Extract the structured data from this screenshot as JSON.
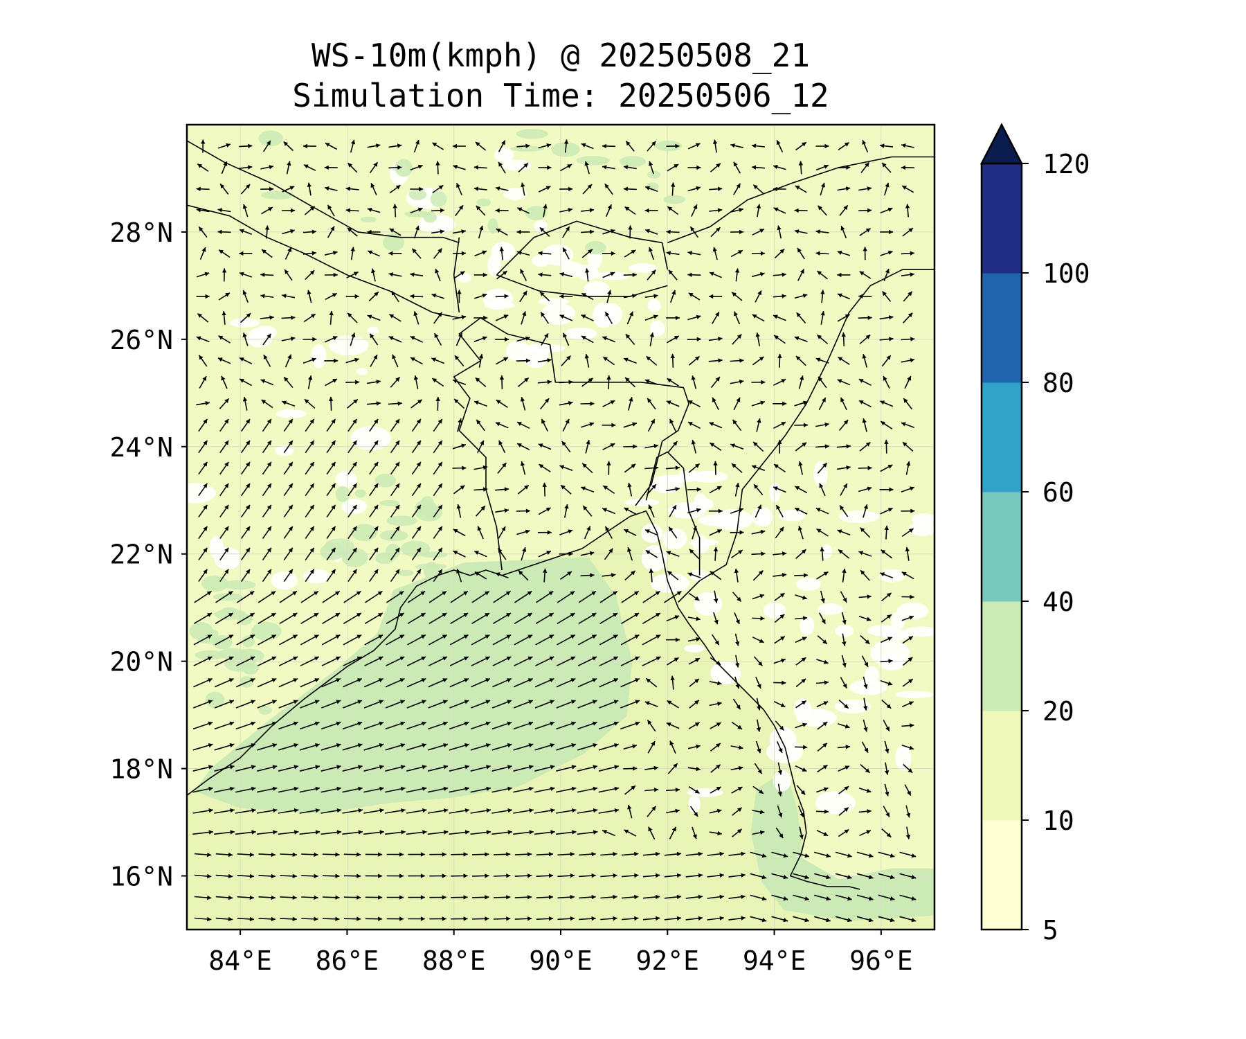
{
  "title": {
    "line1": "WS-10m(kmph) @ 20250508_21",
    "line2": "Simulation Time: 20250506_12"
  },
  "map": {
    "lon_range": [
      83.0,
      97.0
    ],
    "lat_range": [
      15.0,
      30.0
    ],
    "x_ticks": [
      {
        "value": 84,
        "label": "84°E"
      },
      {
        "value": 86,
        "label": "86°E"
      },
      {
        "value": 88,
        "label": "88°E"
      },
      {
        "value": 90,
        "label": "90°E"
      },
      {
        "value": 92,
        "label": "92°E"
      },
      {
        "value": 94,
        "label": "94°E"
      },
      {
        "value": 96,
        "label": "96°E"
      }
    ],
    "y_ticks": [
      {
        "value": 16,
        "label": "16°N"
      },
      {
        "value": 18,
        "label": "18°N"
      },
      {
        "value": 20,
        "label": "20°N"
      },
      {
        "value": 22,
        "label": "22°N"
      },
      {
        "value": 24,
        "label": "24°N"
      },
      {
        "value": 26,
        "label": "26°N"
      },
      {
        "value": 28,
        "label": "28°N"
      }
    ],
    "gridlines": true,
    "field": "wind speed at 10 m with wind direction arrows"
  },
  "colorbar": {
    "extend": "max",
    "levels": [
      5,
      10,
      20,
      40,
      60,
      80,
      100,
      120
    ],
    "labels": [
      "5",
      "10",
      "20",
      "40",
      "60",
      "80",
      "100",
      "120"
    ],
    "colors": [
      "#ffffd6",
      "#eef8b9",
      "#cbeab5",
      "#78c9bd",
      "#30a3c6",
      "#2064ae",
      "#1f2d84",
      "#0b1d4f"
    ]
  },
  "colors": {
    "land_base": "#f2fac3",
    "sea_base": "#e8f5b6",
    "calm": "#ffffff",
    "strong": "#cbeab5",
    "border": "#000000"
  }
}
